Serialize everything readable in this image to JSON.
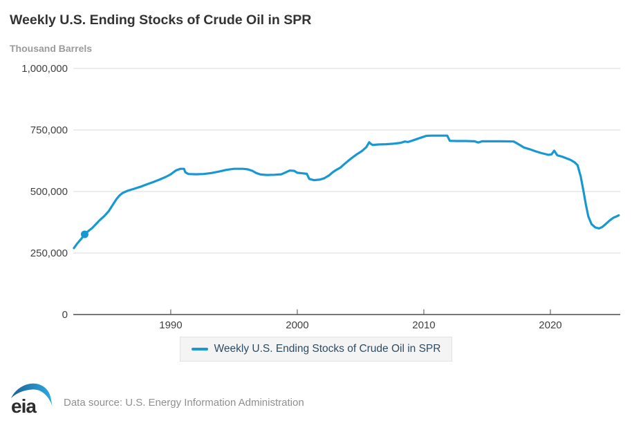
{
  "title": "Weekly U.S. Ending Stocks of Crude Oil in SPR",
  "subtitle_units": "Thousand Barrels",
  "legend": {
    "label": "Weekly U.S. Ending Stocks of Crude Oil in SPR"
  },
  "footer": {
    "logo_text": "eia",
    "source": "Data source: U.S. Energy Information Administration"
  },
  "colors": {
    "line": "#1798d3",
    "title": "#333333",
    "subtitle": "#9b9b9b",
    "axis_label": "#404040",
    "grid": "#d9d9d9",
    "axis": "#4a4a4a",
    "legend_text": "#2d4b63",
    "legend_bg": "#f4f4f4",
    "legend_border": "#e2e2e2",
    "source_text": "#8f8f8f",
    "logo_swoosh_dark": "#1d5f94",
    "logo_swoosh_light": "#29abe2",
    "logo_text": "#2d2d2d"
  },
  "chart_data": {
    "type": "line",
    "title": "Weekly U.S. Ending Stocks of Crude Oil in SPR",
    "ylabel": "Thousand Barrels",
    "xlabel": "",
    "grid": "horizontal",
    "legend_position": "bottom",
    "ylim": [
      0,
      1000000
    ],
    "xlim": [
      1982.3,
      2025.52
    ],
    "yticks": [
      {
        "value": 0,
        "label": "0"
      },
      {
        "value": 250000,
        "label": "250,000"
      },
      {
        "value": 500000,
        "label": "500,000"
      },
      {
        "value": 750000,
        "label": "750,000"
      },
      {
        "value": 1000000,
        "label": "1,000,000"
      }
    ],
    "xticks": [
      {
        "value": 1990,
        "label": "1990"
      },
      {
        "value": 2000,
        "label": "2000"
      },
      {
        "value": 2010,
        "label": "2010"
      },
      {
        "value": 2020,
        "label": "2020"
      }
    ],
    "series": [
      {
        "name": "Weekly U.S. Ending Stocks of Crude Oil in SPR",
        "color": "#1798d3",
        "marker_point": [
          1983.2,
          326000
        ],
        "points": [
          [
            1982.35,
            270000
          ],
          [
            1982.6,
            288000
          ],
          [
            1982.9,
            306000
          ],
          [
            1983.2,
            326000
          ],
          [
            1983.5,
            340000
          ],
          [
            1983.8,
            352000
          ],
          [
            1984.1,
            368000
          ],
          [
            1984.4,
            384000
          ],
          [
            1984.75,
            400000
          ],
          [
            1985.1,
            420000
          ],
          [
            1985.4,
            444000
          ],
          [
            1985.7,
            468000
          ],
          [
            1985.95,
            484000
          ],
          [
            1986.2,
            494000
          ],
          [
            1986.6,
            503000
          ],
          [
            1987.1,
            511000
          ],
          [
            1987.6,
            519000
          ],
          [
            1988.1,
            529000
          ],
          [
            1988.6,
            538000
          ],
          [
            1989.1,
            548000
          ],
          [
            1989.6,
            559000
          ],
          [
            1990.0,
            570000
          ],
          [
            1990.4,
            585000
          ],
          [
            1990.75,
            592000
          ],
          [
            1991.05,
            592000
          ],
          [
            1991.15,
            578000
          ],
          [
            1991.4,
            571000
          ],
          [
            1992.0,
            570000
          ],
          [
            1992.6,
            571000
          ],
          [
            1993.2,
            575000
          ],
          [
            1993.8,
            581000
          ],
          [
            1994.4,
            588000
          ],
          [
            1995.0,
            592000
          ],
          [
            1995.7,
            592000
          ],
          [
            1996.1,
            590000
          ],
          [
            1996.45,
            584000
          ],
          [
            1996.75,
            575000
          ],
          [
            1997.1,
            569000
          ],
          [
            1997.6,
            567000
          ],
          [
            1998.2,
            568000
          ],
          [
            1998.75,
            570000
          ],
          [
            1999.05,
            577000
          ],
          [
            1999.4,
            585000
          ],
          [
            1999.75,
            584000
          ],
          [
            2000.0,
            576000
          ],
          [
            2000.4,
            574000
          ],
          [
            2000.75,
            572000
          ],
          [
            2000.95,
            551000
          ],
          [
            2001.3,
            546000
          ],
          [
            2001.75,
            548000
          ],
          [
            2002.1,
            553000
          ],
          [
            2002.5,
            565000
          ],
          [
            2002.8,
            578000
          ],
          [
            2003.0,
            585000
          ],
          [
            2003.4,
            597000
          ],
          [
            2003.8,
            615000
          ],
          [
            2004.2,
            632000
          ],
          [
            2004.7,
            651000
          ],
          [
            2005.1,
            664000
          ],
          [
            2005.45,
            680000
          ],
          [
            2005.68,
            700000
          ],
          [
            2005.8,
            694000
          ],
          [
            2005.95,
            689000
          ],
          [
            2006.4,
            691000
          ],
          [
            2007.0,
            692000
          ],
          [
            2007.6,
            694000
          ],
          [
            2008.2,
            698000
          ],
          [
            2008.5,
            703000
          ],
          [
            2008.75,
            701000
          ],
          [
            2009.1,
            707000
          ],
          [
            2009.5,
            714000
          ],
          [
            2009.9,
            721000
          ],
          [
            2010.2,
            726000
          ],
          [
            2010.6,
            727000
          ],
          [
            2011.3,
            727000
          ],
          [
            2011.85,
            727000
          ],
          [
            2012.05,
            706000
          ],
          [
            2012.6,
            705000
          ],
          [
            2013.3,
            705000
          ],
          [
            2014.0,
            704000
          ],
          [
            2014.3,
            699000
          ],
          [
            2014.6,
            704000
          ],
          [
            2015.3,
            704000
          ],
          [
            2016.1,
            704000
          ],
          [
            2017.1,
            703000
          ],
          [
            2017.45,
            693000
          ],
          [
            2017.9,
            679000
          ],
          [
            2018.35,
            672000
          ],
          [
            2018.85,
            663000
          ],
          [
            2019.3,
            656000
          ],
          [
            2019.85,
            649000
          ],
          [
            2020.1,
            651000
          ],
          [
            2020.3,
            666000
          ],
          [
            2020.55,
            647000
          ],
          [
            2020.9,
            642000
          ],
          [
            2021.3,
            634000
          ],
          [
            2021.6,
            628000
          ],
          [
            2021.9,
            619000
          ],
          [
            2022.15,
            607000
          ],
          [
            2022.4,
            560000
          ],
          [
            2022.6,
            505000
          ],
          [
            2022.8,
            448000
          ],
          [
            2023.0,
            398000
          ],
          [
            2023.25,
            367000
          ],
          [
            2023.55,
            354000
          ],
          [
            2023.85,
            350000
          ],
          [
            2024.1,
            356000
          ],
          [
            2024.4,
            369000
          ],
          [
            2024.7,
            383000
          ],
          [
            2025.0,
            394000
          ],
          [
            2025.2,
            398000
          ],
          [
            2025.4,
            403000
          ]
        ]
      }
    ]
  }
}
